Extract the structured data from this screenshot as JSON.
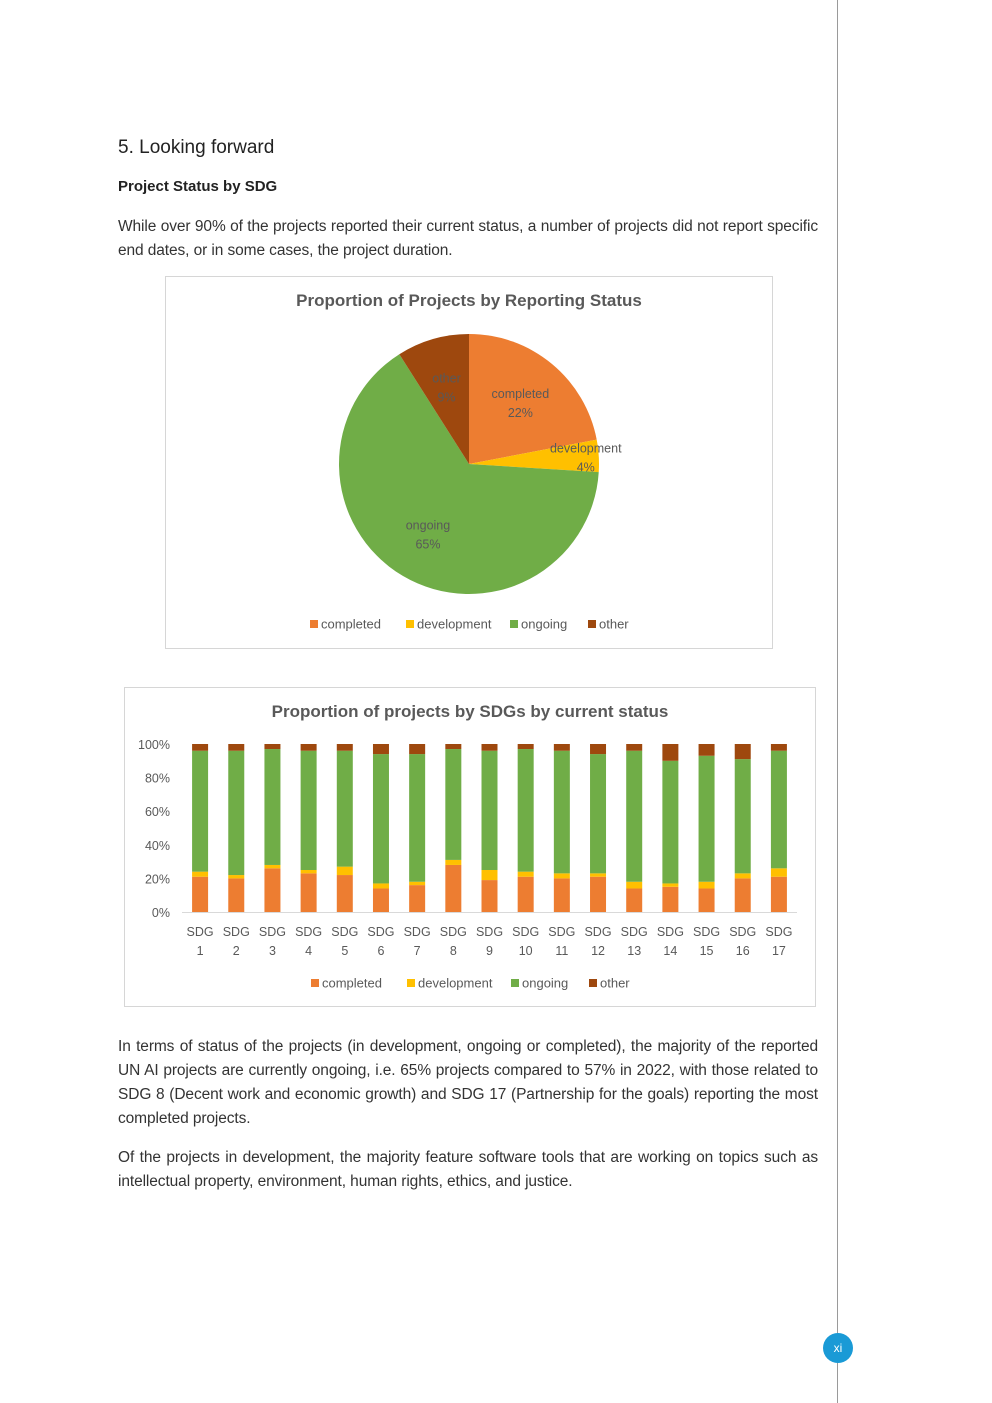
{
  "section": {
    "heading": "5. Looking forward",
    "subheading": "Project Status by SDG",
    "intro": "While over 90% of the projects reported their current status, a number of projects did not report specific end dates, or in some cases, the project duration."
  },
  "paragraphs": {
    "p1": "In terms of status of the projects (in development, ongoing or completed), the majority of the reported UN AI projects are currently ongoing, i.e. 65% projects compared to 57% in 2022, with those related to SDG 8 (Decent work and economic growth) and SDG 17 (Partnership for the goals) reporting the most completed projects.",
    "p2": "Of the projects in development, the majority feature software tools that are working on topics such as intellectual property, environment, human rights, ethics, and justice."
  },
  "page_number": "xi",
  "colors": {
    "completed": "#ED7D31",
    "development": "#FFC000",
    "ongoing": "#70AD47",
    "other": "#9E480E",
    "page_badge": "#1a9ad6"
  },
  "chart_data": [
    {
      "type": "pie",
      "title": "Proportion of Projects by Reporting Status",
      "slices": [
        {
          "label": "completed",
          "value": 22,
          "pct_label": "22%"
        },
        {
          "label": "development",
          "value": 4,
          "pct_label": "4%"
        },
        {
          "label": "ongoing",
          "value": 65,
          "pct_label": "65%"
        },
        {
          "label": "other",
          "value": 9,
          "pct_label": "9%"
        }
      ],
      "legend": [
        "completed",
        "development",
        "ongoing",
        "other"
      ],
      "legend_position": "bottom"
    },
    {
      "type": "bar",
      "stacked": "percent",
      "title": "Proportion of projects by SDGs by current status",
      "categories": [
        [
          "SDG",
          "1"
        ],
        [
          "SDG",
          "2"
        ],
        [
          "SDG",
          "3"
        ],
        [
          "SDG",
          "4"
        ],
        [
          "SDG",
          "5"
        ],
        [
          "SDG",
          "6"
        ],
        [
          "SDG",
          "7"
        ],
        [
          "SDG",
          "8"
        ],
        [
          "SDG",
          "9"
        ],
        [
          "SDG",
          "10"
        ],
        [
          "SDG",
          "11"
        ],
        [
          "SDG",
          "12"
        ],
        [
          "SDG",
          "13"
        ],
        [
          "SDG",
          "14"
        ],
        [
          "SDG",
          "15"
        ],
        [
          "SDG",
          "16"
        ],
        [
          "SDG",
          "17"
        ]
      ],
      "y_ticks": [
        "0%",
        "20%",
        "40%",
        "60%",
        "80%",
        "100%"
      ],
      "ylim": [
        0,
        100
      ],
      "grid": false,
      "legend_position": "bottom",
      "series": [
        {
          "name": "completed",
          "values": [
            21,
            20,
            26,
            23,
            22,
            14,
            16,
            28,
            19,
            21,
            20,
            21,
            14,
            15,
            14,
            20,
            21
          ]
        },
        {
          "name": "development",
          "values": [
            3,
            2,
            2,
            2,
            5,
            3,
            2,
            3,
            6,
            3,
            3,
            2,
            4,
            2,
            4,
            3,
            5
          ]
        },
        {
          "name": "ongoing",
          "values": [
            72,
            74,
            69,
            71,
            69,
            77,
            76,
            66,
            71,
            73,
            73,
            71,
            78,
            73,
            75,
            68,
            70
          ]
        },
        {
          "name": "other",
          "values": [
            4,
            4,
            3,
            4,
            4,
            6,
            6,
            3,
            4,
            3,
            4,
            6,
            4,
            10,
            7,
            9,
            4
          ]
        }
      ]
    }
  ]
}
